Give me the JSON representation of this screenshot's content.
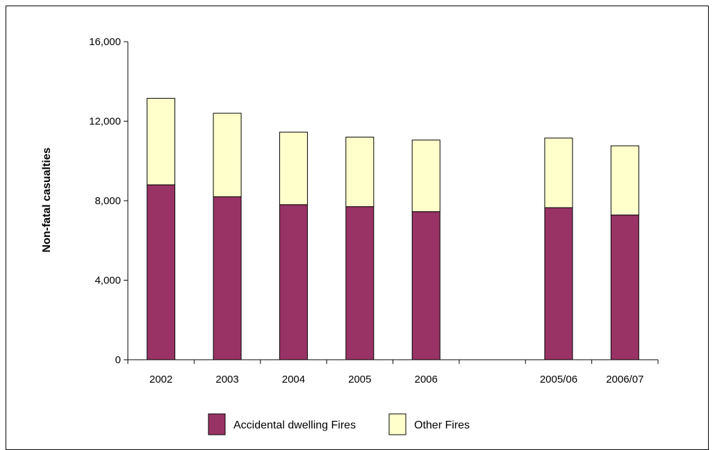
{
  "chart_data": {
    "type": "bar",
    "stacked": true,
    "categories": [
      "2002",
      "2003",
      "2004",
      "2005",
      "2006",
      "",
      "2005/06",
      "2006/07"
    ],
    "series": [
      {
        "name": "Accidental dwelling Fires",
        "color": "#993366",
        "values": [
          8800,
          8200,
          7800,
          7700,
          7450,
          null,
          7650,
          7280
        ]
      },
      {
        "name": "Other Fires",
        "color": "#ffffcc",
        "values": [
          4350,
          4200,
          3650,
          3500,
          3600,
          null,
          3500,
          3480
        ]
      }
    ],
    "ylabel": "Non-fatal casualties",
    "ylim": [
      0,
      16000
    ],
    "yticks": [
      0,
      4000,
      8000,
      12000,
      16000
    ],
    "ytick_labels": [
      "0",
      "4,000",
      "8,000",
      "12,000",
      "16,000"
    ],
    "grid": false,
    "legend_position": "bottom"
  }
}
